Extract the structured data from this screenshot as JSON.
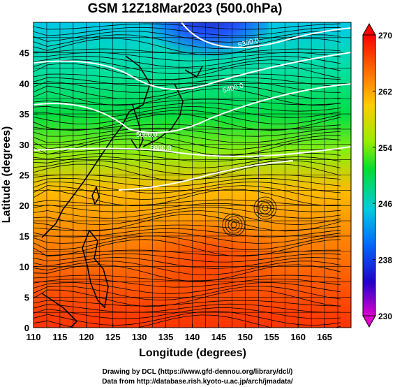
{
  "title": "GSM 12Z18Mar2023 (500.0hPa)",
  "axes": {
    "xlabel": "Longitude (degrees)",
    "ylabel": "Latitude (degrees)",
    "x_ticks": [
      "110",
      "115",
      "120",
      "125",
      "130",
      "135",
      "140",
      "145",
      "150",
      "155",
      "160",
      "165"
    ],
    "y_ticks": [
      "0",
      "5",
      "10",
      "15",
      "20",
      "25",
      "30",
      "35",
      "40",
      "45"
    ],
    "xlim": [
      110,
      170
    ],
    "ylim": [
      0,
      50
    ]
  },
  "colorbar": {
    "min_label": "230",
    "max_label": "270",
    "ticks": [
      "270",
      "262",
      "254",
      "246",
      "238",
      "230"
    ]
  },
  "contours": [
    {
      "label": "5300.0"
    },
    {
      "label": "5400.0"
    },
    {
      "label": "5600.0"
    },
    {
      "label": "5800.0"
    }
  ],
  "credits": {
    "line1": "Drawing by DCL (https://www.gfd-dennou.org/library/dcl/)",
    "line2": "Data from http://database.rish.kyoto-u.ac.jp/arch/jmadata/"
  },
  "colors": {
    "cold": "#1a1aa8",
    "warm": "#ff3300"
  }
}
